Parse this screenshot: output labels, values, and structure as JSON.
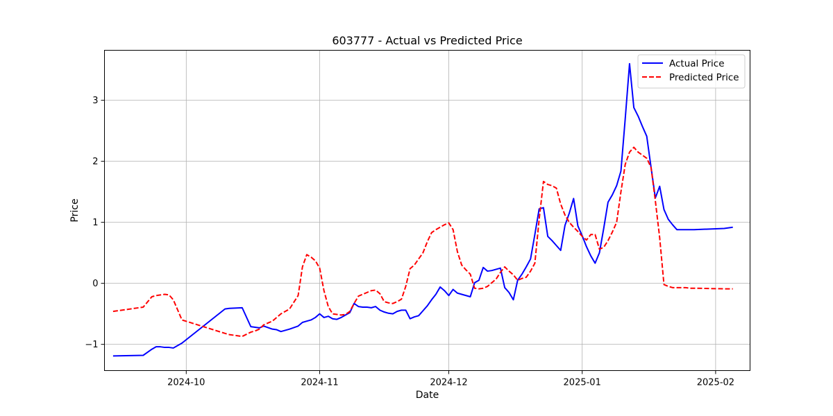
{
  "chart_data": {
    "type": "line",
    "title": "603777 - Actual vs Predicted Price",
    "xlabel": "Date",
    "ylabel": "Price",
    "xlim": [
      "2024-09-12",
      "2025-02-09"
    ],
    "ylim": [
      -1.43,
      3.82
    ],
    "x_ticks": [
      "2024-10",
      "2024-11",
      "2024-12",
      "2025-01",
      "2025-02"
    ],
    "y_ticks": [
      -1,
      0,
      1,
      2,
      3
    ],
    "y_tick_labels": [
      "−1",
      "0",
      "1",
      "2",
      "3"
    ],
    "grid": true,
    "legend_position": "top-right",
    "series": [
      {
        "name": "Actual Price",
        "color": "#0000ff",
        "line_style": "solid",
        "x": [
          "2024-09-14",
          "2024-09-21",
          "2024-09-23",
          "2024-09-24",
          "2024-09-25",
          "2024-09-26",
          "2024-09-27",
          "2024-09-28",
          "2024-09-30",
          "2024-10-10",
          "2024-10-11",
          "2024-10-14",
          "2024-10-16",
          "2024-10-17",
          "2024-10-18",
          "2024-10-19",
          "2024-10-21",
          "2024-10-22",
          "2024-10-23",
          "2024-10-25",
          "2024-10-27",
          "2024-10-28",
          "2024-10-29",
          "2024-10-30",
          "2024-10-31",
          "2024-11-01",
          "2024-11-02",
          "2024-11-03",
          "2024-11-04",
          "2024-11-05",
          "2024-11-06",
          "2024-11-07",
          "2024-11-08",
          "2024-11-09",
          "2024-11-10",
          "2024-11-11",
          "2024-11-12",
          "2024-11-13",
          "2024-11-14",
          "2024-11-15",
          "2024-11-16",
          "2024-11-17",
          "2024-11-18",
          "2024-11-19",
          "2024-11-20",
          "2024-11-21",
          "2024-11-22",
          "2024-11-23",
          "2024-11-24",
          "2024-11-25",
          "2024-11-26",
          "2024-11-27",
          "2024-11-28",
          "2024-11-29",
          "2024-11-30",
          "2024-12-01",
          "2024-12-02",
          "2024-12-03",
          "2024-12-04",
          "2024-12-05",
          "2024-12-06",
          "2024-12-07",
          "2024-12-08",
          "2024-12-09",
          "2024-12-10",
          "2024-12-11",
          "2024-12-12",
          "2024-12-13",
          "2024-12-14",
          "2024-12-15",
          "2024-12-16",
          "2024-12-17",
          "2024-12-18",
          "2024-12-19",
          "2024-12-20",
          "2024-12-21",
          "2024-12-22",
          "2024-12-23",
          "2024-12-24",
          "2024-12-25",
          "2024-12-26",
          "2024-12-27",
          "2024-12-28",
          "2024-12-29",
          "2024-12-30",
          "2024-12-31",
          "2025-01-01",
          "2025-01-02",
          "2025-01-03",
          "2025-01-04",
          "2025-01-05",
          "2025-01-06",
          "2025-01-07",
          "2025-01-08",
          "2025-01-09",
          "2025-01-10",
          "2025-01-11",
          "2025-01-12",
          "2025-01-13",
          "2025-01-14",
          "2025-01-15",
          "2025-01-16",
          "2025-01-17",
          "2025-01-18",
          "2025-01-19",
          "2025-01-20",
          "2025-01-21",
          "2025-01-22",
          "2025-01-23",
          "2025-01-24",
          "2025-01-25",
          "2025-01-26",
          "2025-01-27",
          "2025-02-03",
          "2025-02-05"
        ],
        "y": [
          -1.19,
          -1.18,
          -1.08,
          -1.04,
          -1.04,
          -1.05,
          -1.05,
          -1.06,
          -0.98,
          -0.42,
          -0.41,
          -0.4,
          -0.71,
          -0.72,
          -0.73,
          -0.7,
          -0.75,
          -0.76,
          -0.79,
          -0.75,
          -0.7,
          -0.64,
          -0.62,
          -0.6,
          -0.56,
          -0.5,
          -0.56,
          -0.54,
          -0.58,
          -0.59,
          -0.56,
          -0.52,
          -0.48,
          -0.33,
          -0.38,
          -0.39,
          -0.39,
          -0.4,
          -0.38,
          -0.44,
          -0.47,
          -0.49,
          -0.5,
          -0.46,
          -0.44,
          -0.44,
          -0.58,
          -0.55,
          -0.53,
          -0.45,
          -0.37,
          -0.27,
          -0.18,
          -0.06,
          -0.12,
          -0.2,
          -0.1,
          -0.16,
          -0.18,
          -0.2,
          -0.22,
          0.01,
          0.05,
          0.26,
          0.2,
          0.21,
          0.23,
          0.25,
          -0.07,
          -0.15,
          -0.27,
          0.05,
          0.15,
          0.27,
          0.4,
          0.8,
          1.22,
          1.24,
          0.77,
          0.7,
          0.62,
          0.54,
          0.95,
          1.15,
          1.39,
          0.94,
          0.78,
          0.6,
          0.45,
          0.33,
          0.5,
          0.9,
          1.33,
          1.45,
          1.6,
          1.84,
          2.7,
          3.6,
          2.88,
          2.74,
          2.57,
          2.41,
          1.9,
          1.4,
          1.59,
          1.21,
          1.05,
          0.96,
          0.88,
          0.88,
          0.88,
          0.88,
          0.88,
          0.9,
          0.92
        ]
      },
      {
        "name": "Predicted Price",
        "color": "#ff0000",
        "line_style": "dashed",
        "x": [
          "2024-09-14",
          "2024-09-21",
          "2024-09-23",
          "2024-09-24",
          "2024-09-25",
          "2024-09-26",
          "2024-09-27",
          "2024-09-28",
          "2024-09-30",
          "2024-10-10",
          "2024-10-11",
          "2024-10-14",
          "2024-10-16",
          "2024-10-17",
          "2024-10-18",
          "2024-10-19",
          "2024-10-21",
          "2024-10-22",
          "2024-10-23",
          "2024-10-25",
          "2024-10-27",
          "2024-10-28",
          "2024-10-29",
          "2024-10-30",
          "2024-10-31",
          "2024-11-01",
          "2024-11-02",
          "2024-11-03",
          "2024-11-04",
          "2024-11-05",
          "2024-11-06",
          "2024-11-07",
          "2024-11-08",
          "2024-11-09",
          "2024-11-10",
          "2024-11-11",
          "2024-11-12",
          "2024-11-13",
          "2024-11-14",
          "2024-11-15",
          "2024-11-16",
          "2024-11-17",
          "2024-11-18",
          "2024-11-19",
          "2024-11-20",
          "2024-11-21",
          "2024-11-22",
          "2024-11-23",
          "2024-11-24",
          "2024-11-25",
          "2024-11-26",
          "2024-11-27",
          "2024-11-28",
          "2024-11-29",
          "2024-11-30",
          "2024-12-01",
          "2024-12-02",
          "2024-12-03",
          "2024-12-04",
          "2024-12-05",
          "2024-12-06",
          "2024-12-07",
          "2024-12-08",
          "2024-12-09",
          "2024-12-10",
          "2024-12-11",
          "2024-12-12",
          "2024-12-13",
          "2024-12-14",
          "2024-12-15",
          "2024-12-16",
          "2024-12-17",
          "2024-12-18",
          "2024-12-19",
          "2024-12-20",
          "2024-12-21",
          "2024-12-22",
          "2024-12-23",
          "2024-12-24",
          "2024-12-25",
          "2024-12-26",
          "2024-12-27",
          "2024-12-28",
          "2024-12-29",
          "2024-12-30",
          "2024-12-31",
          "2025-01-01",
          "2025-01-02",
          "2025-01-03",
          "2025-01-04",
          "2025-01-05",
          "2025-01-06",
          "2025-01-07",
          "2025-01-08",
          "2025-01-09",
          "2025-01-10",
          "2025-01-11",
          "2025-01-12",
          "2025-01-13",
          "2025-01-14",
          "2025-01-15",
          "2025-01-16",
          "2025-01-17",
          "2025-01-18",
          "2025-01-19",
          "2025-01-20",
          "2025-01-21",
          "2025-01-22",
          "2025-01-23",
          "2025-01-24",
          "2025-01-25",
          "2025-01-26",
          "2025-01-27",
          "2025-02-03",
          "2025-02-05"
        ],
        "y": [
          -0.46,
          -0.39,
          -0.22,
          -0.2,
          -0.19,
          -0.18,
          -0.19,
          -0.27,
          -0.6,
          -0.82,
          -0.84,
          -0.87,
          -0.8,
          -0.78,
          -0.75,
          -0.68,
          -0.62,
          -0.56,
          -0.5,
          -0.42,
          -0.2,
          0.27,
          0.47,
          0.43,
          0.37,
          0.25,
          -0.12,
          -0.38,
          -0.5,
          -0.51,
          -0.52,
          -0.51,
          -0.46,
          -0.33,
          -0.21,
          -0.18,
          -0.15,
          -0.12,
          -0.11,
          -0.17,
          -0.3,
          -0.32,
          -0.33,
          -0.3,
          -0.26,
          -0.05,
          0.24,
          0.3,
          0.4,
          0.5,
          0.68,
          0.83,
          0.88,
          0.92,
          0.96,
          0.99,
          0.88,
          0.52,
          0.3,
          0.22,
          0.15,
          -0.08,
          -0.09,
          -0.08,
          -0.05,
          0.01,
          0.07,
          0.18,
          0.27,
          0.2,
          0.14,
          0.05,
          0.08,
          0.1,
          0.2,
          0.33,
          1.05,
          1.67,
          1.62,
          1.6,
          1.56,
          1.3,
          1.12,
          1.0,
          0.92,
          0.85,
          0.77,
          0.71,
          0.8,
          0.8,
          0.56,
          0.59,
          0.7,
          0.84,
          1.0,
          1.5,
          1.95,
          2.15,
          2.23,
          2.15,
          2.1,
          2.05,
          1.9,
          1.35,
          0.75,
          -0.02,
          -0.05,
          -0.07,
          -0.07,
          -0.07,
          -0.07,
          -0.08,
          -0.08,
          -0.09,
          -0.09
        ]
      }
    ]
  }
}
